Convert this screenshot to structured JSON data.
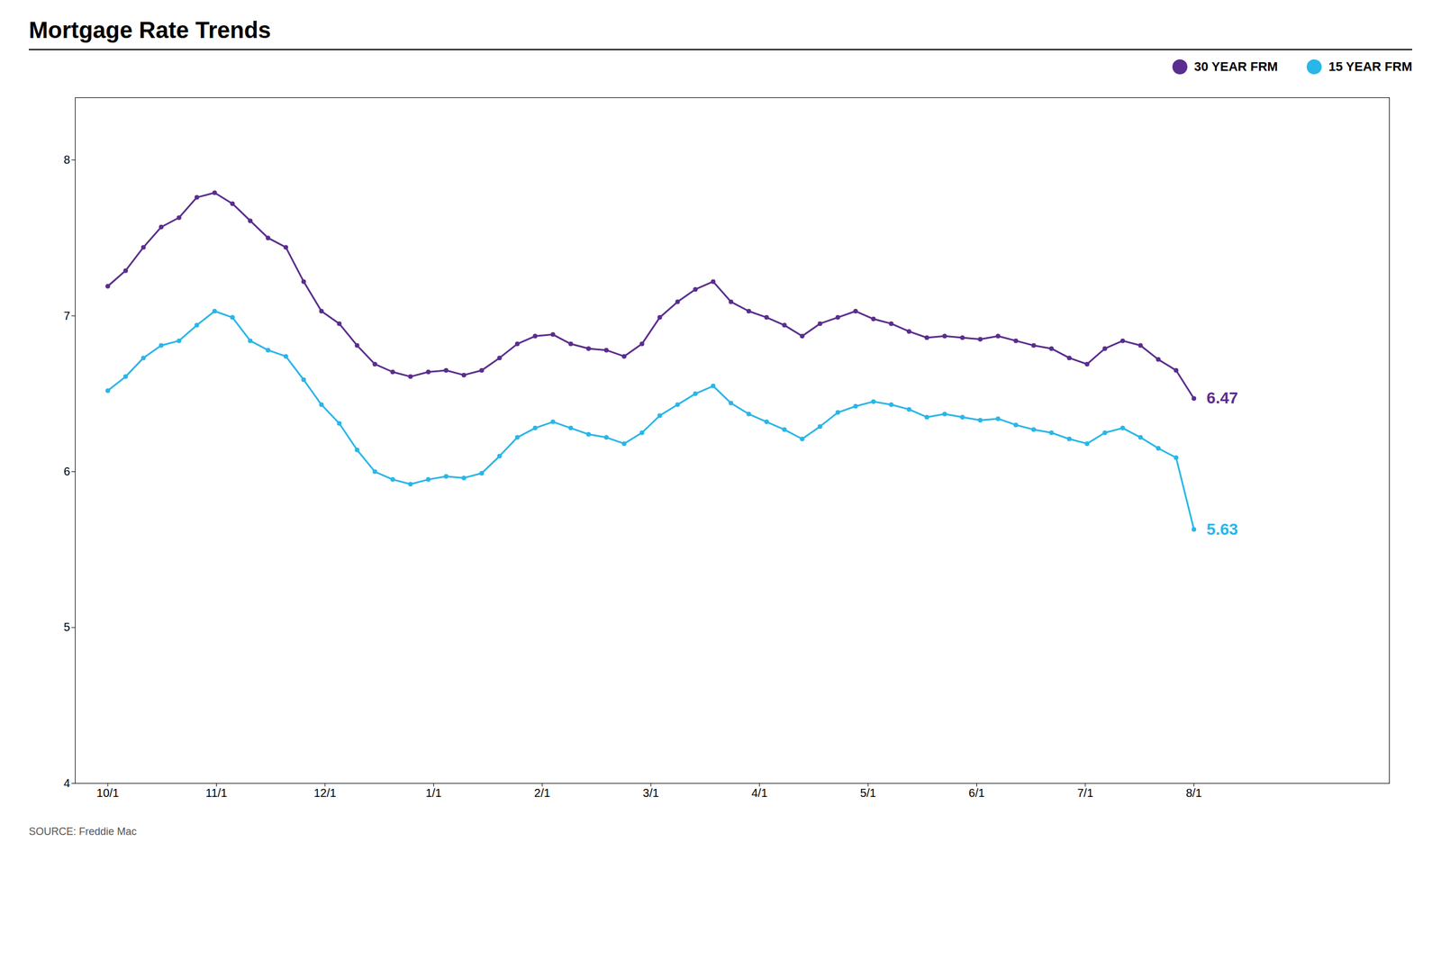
{
  "chart_data": {
    "type": "line",
    "title": "Mortgage Rate Trends",
    "source": "SOURCE: Freddie Mac",
    "x": [
      0,
      0.1639,
      0.3279,
      0.4918,
      0.6557,
      0.8197,
      0.9836,
      1.1475,
      1.3115,
      1.4754,
      1.6393,
      1.8033,
      1.9672,
      2.1311,
      2.2951,
      2.459,
      2.623,
      2.7869,
      2.9508,
      3.1148,
      3.2787,
      3.4426,
      3.6066,
      3.7705,
      3.9344,
      4.0984,
      4.2623,
      4.4262,
      4.5902,
      4.7541,
      4.918,
      5.082,
      5.2459,
      5.4098,
      5.5738,
      5.7377,
      5.9016,
      6.0656,
      6.2295,
      6.3934,
      6.5574,
      6.7213,
      6.8852,
      7.0492,
      7.2131,
      7.377,
      7.541,
      7.7049,
      7.8689,
      8.0328,
      8.1967,
      8.3607,
      8.5246,
      8.6885,
      8.8525,
      9.0164,
      9.1803,
      9.3443,
      9.5082,
      9.6721,
      9.8361,
      10
    ],
    "series": [
      {
        "name": "30 YEAR FRM",
        "color": "#5B2D8E",
        "marker": "circle",
        "values": [
          7.19,
          7.29,
          7.44,
          7.57,
          7.63,
          7.76,
          7.79,
          7.72,
          7.61,
          7.5,
          7.44,
          7.22,
          7.03,
          6.95,
          6.81,
          6.69,
          6.64,
          6.61,
          6.64,
          6.65,
          6.62,
          6.65,
          6.73,
          6.82,
          6.87,
          6.88,
          6.82,
          6.79,
          6.78,
          6.74,
          6.82,
          6.99,
          7.09,
          7.17,
          7.22,
          7.09,
          7.03,
          6.99,
          6.94,
          6.87,
          6.95,
          6.99,
          7.03,
          6.98,
          6.95,
          6.9,
          6.86,
          6.87,
          6.86,
          6.85,
          6.87,
          6.84,
          6.81,
          6.79,
          6.73,
          6.69,
          6.79,
          6.84,
          6.81,
          6.72,
          6.65,
          6.47
        ]
      },
      {
        "name": "15 YEAR FRM",
        "color": "#29B6E8",
        "marker": "circle",
        "values": [
          6.52,
          6.61,
          6.73,
          6.81,
          6.84,
          6.94,
          7.03,
          6.99,
          6.84,
          6.78,
          6.74,
          6.59,
          6.43,
          6.31,
          6.14,
          6.0,
          5.95,
          5.92,
          5.95,
          5.97,
          5.96,
          5.99,
          6.1,
          6.22,
          6.28,
          6.32,
          6.28,
          6.24,
          6.22,
          6.18,
          6.25,
          6.36,
          6.43,
          6.5,
          6.55,
          6.44,
          6.37,
          6.32,
          6.27,
          6.21,
          6.29,
          6.38,
          6.42,
          6.45,
          6.43,
          6.4,
          6.35,
          6.37,
          6.35,
          6.33,
          6.34,
          6.3,
          6.27,
          6.25,
          6.21,
          6.18,
          6.25,
          6.28,
          6.22,
          6.15,
          6.09,
          5.63
        ]
      }
    ],
    "annotations": [
      {
        "text": "6.47",
        "x": 10,
        "y": 6.47,
        "color": "#5B2D8E"
      },
      {
        "text": "5.63",
        "x": 10,
        "y": 5.63,
        "color": "#29B6E8"
      }
    ],
    "xlim": [
      -0.3,
      11.8
    ],
    "xticks": [
      {
        "value": 0,
        "label": "10/1"
      },
      {
        "value": 1,
        "label": "11/1"
      },
      {
        "value": 2,
        "label": "12/1"
      },
      {
        "value": 3,
        "label": "1/1"
      },
      {
        "value": 4,
        "label": "2/1"
      },
      {
        "value": 5,
        "label": "3/1"
      },
      {
        "value": 6,
        "label": "4/1"
      },
      {
        "value": 7,
        "label": "5/1"
      },
      {
        "value": 8,
        "label": "6/1"
      },
      {
        "value": 9,
        "label": "7/1"
      },
      {
        "value": 10,
        "label": "8/1"
      }
    ],
    "ylim": [
      4.0,
      8.4
    ],
    "yticks": [
      4,
      5,
      6,
      7,
      8
    ],
    "grid": false,
    "legend": "top right"
  }
}
